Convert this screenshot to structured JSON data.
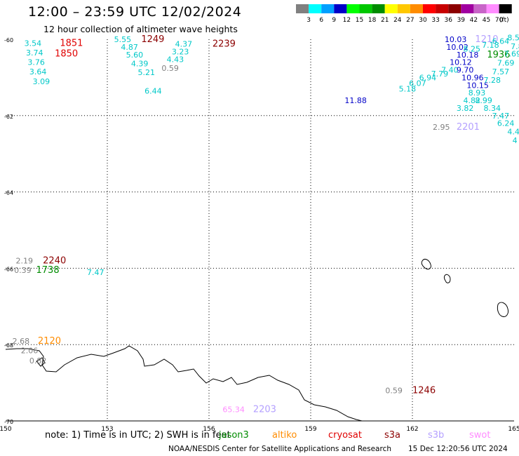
{
  "header": {
    "title": "12:00 – 23:59 UTC 12/02/2024",
    "subtitle": "12 hour collection of altimeter wave heights"
  },
  "color_scale": {
    "unit": "(ft)",
    "bins": [
      {
        "label": "3",
        "color": "#808080"
      },
      {
        "label": "6",
        "color": "#00ffff"
      },
      {
        "label": "9",
        "color": "#00a0ff"
      },
      {
        "label": "12",
        "color": "#0000c8"
      },
      {
        "label": "15",
        "color": "#00ff00"
      },
      {
        "label": "18",
        "color": "#00c800"
      },
      {
        "label": "21",
        "color": "#008c00"
      },
      {
        "label": "24",
        "color": "#ffff00"
      },
      {
        "label": "27",
        "color": "#ffc800"
      },
      {
        "label": "30",
        "color": "#ff8c00"
      },
      {
        "label": "33",
        "color": "#ff0000"
      },
      {
        "label": "36",
        "color": "#c80000"
      },
      {
        "label": "39",
        "color": "#8c0000"
      },
      {
        "label": "42",
        "color": "#a000a0"
      },
      {
        "label": "45",
        "color": "#c864c8"
      },
      {
        "label": "70",
        "color": "#ff8cff"
      },
      {
        "label": "",
        "color": "#000000"
      }
    ]
  },
  "axes": {
    "lon_labels": [
      "150",
      "153",
      "156",
      "159",
      "162",
      "165"
    ],
    "lat_labels": [
      "-60",
      "-62",
      "-64",
      "-66",
      "-68",
      "-70"
    ]
  },
  "map_labels": [
    {
      "text": "3.54",
      "color": "#00c8c8",
      "lon": 150.55,
      "lat": -60.1
    },
    {
      "text": "3.74",
      "color": "#00c8c8",
      "lon": 150.6,
      "lat": -60.35
    },
    {
      "text": "3.76",
      "color": "#00c8c8",
      "lon": 150.65,
      "lat": -60.6
    },
    {
      "text": "3.64",
      "color": "#00c8c8",
      "lon": 150.7,
      "lat": -60.85
    },
    {
      "text": "3.09",
      "color": "#00c8c8",
      "lon": 150.8,
      "lat": -61.1
    },
    {
      "text": "1851",
      "color": "#e00000",
      "lon": 151.6,
      "lat": -60.1
    },
    {
      "text": "1850",
      "color": "#e00000",
      "lon": 151.45,
      "lat": -60.38
    },
    {
      "text": "5.55",
      "color": "#00c8c8",
      "lon": 153.2,
      "lat": -60.0
    },
    {
      "text": "4.87",
      "color": "#00c8c8",
      "lon": 153.4,
      "lat": -60.2
    },
    {
      "text": "5.60",
      "color": "#00c8c8",
      "lon": 153.55,
      "lat": -60.4
    },
    {
      "text": "4.39",
      "color": "#00c8c8",
      "lon": 153.7,
      "lat": -60.63
    },
    {
      "text": "5.21",
      "color": "#00c8c8",
      "lon": 153.9,
      "lat": -60.86
    },
    {
      "text": "6.44",
      "color": "#00c8c8",
      "lon": 154.1,
      "lat": -61.35
    },
    {
      "text": "1249",
      "color": "#8c0000",
      "lon": 154.0,
      "lat": -60.0
    },
    {
      "text": "4.37",
      "color": "#00c8c8",
      "lon": 155.0,
      "lat": -60.12
    },
    {
      "text": "3.23",
      "color": "#00c8c8",
      "lon": 154.9,
      "lat": -60.32
    },
    {
      "text": "4.43",
      "color": "#00c8c8",
      "lon": 154.75,
      "lat": -60.52
    },
    {
      "text": "0.59",
      "color": "#808080",
      "lon": 154.6,
      "lat": -60.75
    },
    {
      "text": "2239",
      "color": "#8c0000",
      "lon": 156.1,
      "lat": -60.12
    },
    {
      "text": "11.88",
      "color": "#0000c8",
      "lon": 160.0,
      "lat": -61.6
    },
    {
      "text": "5.18",
      "color": "#00c8c8",
      "lon": 161.6,
      "lat": -61.3
    },
    {
      "text": "6.07",
      "color": "#00c8c8",
      "lon": 161.9,
      "lat": -61.15
    },
    {
      "text": "6.94",
      "color": "#00c8c8",
      "lon": 162.2,
      "lat": -61.0
    },
    {
      "text": "7.79",
      "color": "#00c8c8",
      "lon": 162.55,
      "lat": -60.9
    },
    {
      "text": "7.40",
      "color": "#00c8c8",
      "lon": 162.85,
      "lat": -60.8
    },
    {
      "text": "10.03",
      "color": "#0000c8",
      "lon": 162.95,
      "lat": -60.0
    },
    {
      "text": "10.02",
      "color": "#0000c8",
      "lon": 163.0,
      "lat": -60.2
    },
    {
      "text": "10.18",
      "color": "#0000c8",
      "lon": 163.3,
      "lat": -60.4
    },
    {
      "text": "10.12",
      "color": "#0000c8",
      "lon": 163.1,
      "lat": -60.6
    },
    {
      "text": "9.70",
      "color": "#0000c8",
      "lon": 163.3,
      "lat": -60.8
    },
    {
      "text": "10.96",
      "color": "#0000c8",
      "lon": 163.45,
      "lat": -61.0
    },
    {
      "text": "10.15",
      "color": "#0000c8",
      "lon": 163.6,
      "lat": -61.2
    },
    {
      "text": "8.25",
      "color": "#00c8c8",
      "lon": 163.5,
      "lat": -60.25
    },
    {
      "text": "1210",
      "color": "#b4a0ff",
      "lon": 163.85,
      "lat": -60.0
    },
    {
      "text": "7.18",
      "color": "#00c8c8",
      "lon": 164.05,
      "lat": -60.15
    },
    {
      "text": "1936",
      "color": "#008c00",
      "lon": 164.2,
      "lat": -60.4
    },
    {
      "text": "6.64",
      "color": "#00c8c8",
      "lon": 164.35,
      "lat": -60.05
    },
    {
      "text": "8.5",
      "color": "#00c8c8",
      "lon": 164.8,
      "lat": -59.95
    },
    {
      "text": "7.8",
      "color": "#00c8c8",
      "lon": 164.9,
      "lat": -60.18
    },
    {
      "text": "7.69",
      "color": "#00c8c8",
      "lon": 164.7,
      "lat": -60.38
    },
    {
      "text": "7.69",
      "color": "#00c8c8",
      "lon": 164.5,
      "lat": -60.62
    },
    {
      "text": "7.57",
      "color": "#00c8c8",
      "lon": 164.35,
      "lat": -60.85
    },
    {
      "text": "7.28",
      "color": "#00c8c8",
      "lon": 164.1,
      "lat": -61.07
    },
    {
      "text": "8.93",
      "color": "#00c8c8",
      "lon": 163.65,
      "lat": -61.4
    },
    {
      "text": "4.82",
      "color": "#00c8c8",
      "lon": 163.5,
      "lat": -61.6
    },
    {
      "text": "8.99",
      "color": "#00c8c8",
      "lon": 163.85,
      "lat": -61.6
    },
    {
      "text": "3.82",
      "color": "#00c8c8",
      "lon": 163.3,
      "lat": -61.8
    },
    {
      "text": "8.34",
      "color": "#00c8c8",
      "lon": 164.1,
      "lat": -61.8
    },
    {
      "text": "7.47",
      "color": "#00c8c8",
      "lon": 164.35,
      "lat": -62.0
    },
    {
      "text": "6.24",
      "color": "#00c8c8",
      "lon": 164.5,
      "lat": -62.2
    },
    {
      "text": "4.4",
      "color": "#00c8c8",
      "lon": 164.8,
      "lat": -62.42
    },
    {
      "text": "4",
      "color": "#00c8c8",
      "lon": 164.95,
      "lat": -62.65
    },
    {
      "text": "2.95",
      "color": "#808080",
      "lon": 162.6,
      "lat": -62.3
    },
    {
      "text": "2201",
      "color": "#b4a0ff",
      "lon": 163.3,
      "lat": -62.3
    },
    {
      "text": "2.19",
      "color": "#808080",
      "lon": 150.3,
      "lat": -65.8
    },
    {
      "text": "2240",
      "color": "#8c0000",
      "lon": 151.1,
      "lat": -65.8
    },
    {
      "text": "0.39",
      "color": "#808080",
      "lon": 150.25,
      "lat": -66.05
    },
    {
      "text": "1738",
      "color": "#008c00",
      "lon": 150.9,
      "lat": -66.05
    },
    {
      "text": "7.47",
      "color": "#00c8c8",
      "lon": 152.4,
      "lat": -66.1
    },
    {
      "text": "2.68",
      "color": "#808080",
      "lon": 150.2,
      "lat": -67.9
    },
    {
      "text": "2120",
      "color": "#ff8c00",
      "lon": 150.95,
      "lat": -67.9
    },
    {
      "text": "2.06",
      "color": "#808080",
      "lon": 150.45,
      "lat": -68.15
    },
    {
      "text": "0.82",
      "color": "#808080",
      "lon": 150.7,
      "lat": -68.42
    },
    {
      "text": "0.59",
      "color": "#808080",
      "lon": 161.2,
      "lat": -69.2
    },
    {
      "text": "1246",
      "color": "#8c0000",
      "lon": 162.0,
      "lat": -69.2
    },
    {
      "text": "65.34",
      "color": "#ff8cff",
      "lon": 156.4,
      "lat": -69.7
    },
    {
      "text": "2203",
      "color": "#b4a0ff",
      "lon": 157.3,
      "lat": -69.7
    }
  ],
  "footer": {
    "note": "note:  1) Time is in UTC; 2) SWH is in feet",
    "satellites": [
      {
        "name": "jason3",
        "color": "#008c00"
      },
      {
        "name": "altiko",
        "color": "#ff8c00"
      },
      {
        "name": "cryosat",
        "color": "#e00000"
      },
      {
        "name": "s3a",
        "color": "#8c0000"
      },
      {
        "name": "s3b",
        "color": "#b4a0ff"
      },
      {
        "name": "swot",
        "color": "#ff8cff"
      }
    ],
    "credit": "NOAA/NESDIS Center for Satellite Applications and Research",
    "timestamp": "15 Dec 12:20:56 UTC 2024"
  }
}
